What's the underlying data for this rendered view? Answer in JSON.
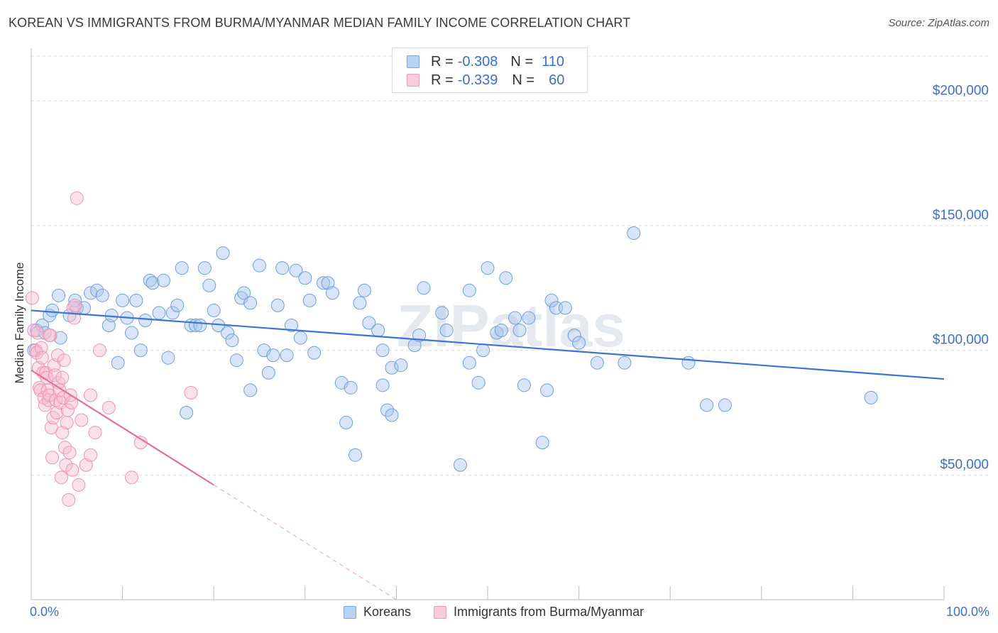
{
  "title": "KOREAN VS IMMIGRANTS FROM BURMA/MYANMAR MEDIAN FAMILY INCOME CORRELATION CHART",
  "source": "Source: ZipAtlas.com",
  "watermark": "ZIPatlas",
  "legend": {
    "rows": [
      {
        "r_label": "R =",
        "r_value": "-0.308",
        "n_label": "N =",
        "n_value": "110",
        "color": "#7aa6e6"
      },
      {
        "r_label": "R =",
        "r_value": "-0.339",
        "n_label": "N =",
        "n_value": "60",
        "color": "#f19bb6"
      }
    ]
  },
  "bottom_legend": {
    "series1": "Koreans",
    "series2": "Immigrants from Burma/Myanmar"
  },
  "colors": {
    "blue": "#3a76d0",
    "blue_fill": "#a9c5ef",
    "pink": "#e4709a",
    "pink_fill": "#f7bdd0",
    "axis_label": "#3a6fd0",
    "grid": "#dddddd"
  },
  "chart_data": {
    "type": "scatter",
    "title": "KOREAN VS IMMIGRANTS FROM BURMA/MYANMAR MEDIAN FAMILY INCOME CORRELATION CHART",
    "xlabel": "",
    "ylabel": "Median Family Income",
    "xlim": [
      0,
      100
    ],
    "ylim": [
      0,
      220000
    ],
    "x_tick_labels": [
      "0.0%",
      "100.0%"
    ],
    "y_ticks": [
      50000,
      100000,
      150000,
      200000
    ],
    "y_tick_labels": [
      "$50,000",
      "$100,000",
      "$150,000",
      "$200,000"
    ],
    "grid": true,
    "legend_position": "top-center",
    "series": [
      {
        "name": "Koreans",
        "r": -0.308,
        "n": 110,
        "trend": {
          "x": [
            0,
            100
          ],
          "y": [
            116000,
            88500
          ]
        },
        "points": [
          [
            0.3,
            100000
          ],
          [
            0.6,
            108000
          ],
          [
            1.2,
            110000
          ],
          [
            1.5,
            107000
          ],
          [
            2.0,
            114000
          ],
          [
            2.3,
            116000
          ],
          [
            3.0,
            122000
          ],
          [
            3.2,
            105000
          ],
          [
            4.2,
            114000
          ],
          [
            5.0,
            117000
          ],
          [
            4.8,
            120000
          ],
          [
            5.8,
            117000
          ],
          [
            6.5,
            123000
          ],
          [
            7.2,
            124000
          ],
          [
            7.8,
            122000
          ],
          [
            8.5,
            110000
          ],
          [
            8.8,
            114000
          ],
          [
            9.5,
            95000
          ],
          [
            10.0,
            120000
          ],
          [
            10.5,
            113000
          ],
          [
            11.0,
            107000
          ],
          [
            11.5,
            120000
          ],
          [
            12.0,
            100000
          ],
          [
            12.5,
            112000
          ],
          [
            13.0,
            128000
          ],
          [
            13.3,
            127000
          ],
          [
            14.0,
            115000
          ],
          [
            14.5,
            128000
          ],
          [
            15.0,
            97000
          ],
          [
            15.5,
            115000
          ],
          [
            16.0,
            118000
          ],
          [
            16.5,
            133000
          ],
          [
            17.0,
            75000
          ],
          [
            17.5,
            110000
          ],
          [
            18.0,
            110000
          ],
          [
            18.5,
            110000
          ],
          [
            19.0,
            133000
          ],
          [
            19.5,
            126000
          ],
          [
            20.0,
            116000
          ],
          [
            20.5,
            110000
          ],
          [
            21.0,
            139000
          ],
          [
            21.5,
            107000
          ],
          [
            22.0,
            104000
          ],
          [
            22.5,
            96000
          ],
          [
            23.0,
            121000
          ],
          [
            23.3,
            123000
          ],
          [
            24.0,
            84000
          ],
          [
            24.0,
            119000
          ],
          [
            25.0,
            134000
          ],
          [
            25.5,
            100000
          ],
          [
            26.0,
            91000
          ],
          [
            26.5,
            98000
          ],
          [
            27.0,
            118000
          ],
          [
            27.5,
            133000
          ],
          [
            28.0,
            98000
          ],
          [
            28.5,
            110000
          ],
          [
            29.0,
            132000
          ],
          [
            29.5,
            105000
          ],
          [
            30.0,
            129000
          ],
          [
            30.5,
            120000
          ],
          [
            31.0,
            99000
          ],
          [
            32.0,
            127000
          ],
          [
            32.5,
            127000
          ],
          [
            33.0,
            123000
          ],
          [
            34.0,
            87000
          ],
          [
            35.0,
            85000
          ],
          [
            34.5,
            71000
          ],
          [
            35.5,
            58000
          ],
          [
            36.0,
            119000
          ],
          [
            36.5,
            124000
          ],
          [
            37.0,
            111000
          ],
          [
            38.0,
            108000
          ],
          [
            38.5,
            86000
          ],
          [
            38.5,
            100000
          ],
          [
            39.0,
            76000
          ],
          [
            39.5,
            74000
          ],
          [
            39.5,
            93000
          ],
          [
            40.5,
            94000
          ],
          [
            42.0,
            102000
          ],
          [
            42.5,
            106000
          ],
          [
            43.0,
            125000
          ],
          [
            45.0,
            115000
          ],
          [
            45.5,
            108000
          ],
          [
            47.0,
            54000
          ],
          [
            48.0,
            124000
          ],
          [
            48.0,
            95000
          ],
          [
            49.0,
            87000
          ],
          [
            49.5,
            100000
          ],
          [
            50.0,
            133000
          ],
          [
            51.0,
            107000
          ],
          [
            51.5,
            108000
          ],
          [
            52.0,
            129000
          ],
          [
            53.0,
            113000
          ],
          [
            53.5,
            108000
          ],
          [
            54.0,
            86000
          ],
          [
            54.5,
            113000
          ],
          [
            56.0,
            63000
          ],
          [
            56.5,
            84000
          ],
          [
            57.0,
            120000
          ],
          [
            57.5,
            117000
          ],
          [
            58.5,
            117000
          ],
          [
            59.5,
            106000
          ],
          [
            60.0,
            103000
          ],
          [
            66.0,
            147000
          ],
          [
            65.0,
            95000
          ],
          [
            72.0,
            95000
          ],
          [
            74.0,
            78000
          ],
          [
            76.0,
            78000
          ],
          [
            92.0,
            81000
          ],
          [
            62.0,
            95000
          ]
        ]
      },
      {
        "name": "Immigrants from Burma/Myanmar",
        "r": -0.339,
        "n": 60,
        "trend": {
          "x": [
            0,
            20
          ],
          "y": [
            92000,
            46000
          ],
          "dashed_to": {
            "x": 40,
            "y": 0
          }
        },
        "points": [
          [
            0.1,
            121000
          ],
          [
            0.3,
            108000
          ],
          [
            0.5,
            100000
          ],
          [
            0.6,
            99000
          ],
          [
            0.7,
            107000
          ],
          [
            0.8,
            93000
          ],
          [
            0.9,
            85000
          ],
          [
            1.0,
            84000
          ],
          [
            1.1,
            101000
          ],
          [
            1.2,
            97000
          ],
          [
            1.3,
            91000
          ],
          [
            1.4,
            81000
          ],
          [
            1.5,
            78000
          ],
          [
            1.6,
            91000
          ],
          [
            1.7,
            89000
          ],
          [
            1.8,
            84000
          ],
          [
            1.9,
            80000
          ],
          [
            2.0,
            82000
          ],
          [
            2.1,
            106000
          ],
          [
            2.2,
            69000
          ],
          [
            2.3,
            57000
          ],
          [
            2.4,
            73000
          ],
          [
            2.5,
            94000
          ],
          [
            2.6,
            90000
          ],
          [
            2.7,
            80000
          ],
          [
            2.8,
            75000
          ],
          [
            2.9,
            98000
          ],
          [
            3.0,
            87000
          ],
          [
            3.1,
            84000
          ],
          [
            3.2,
            79000
          ],
          [
            3.3,
            49000
          ],
          [
            3.4,
            67000
          ],
          [
            3.5,
            81000
          ],
          [
            3.6,
            96000
          ],
          [
            3.7,
            61000
          ],
          [
            3.8,
            54000
          ],
          [
            3.9,
            71000
          ],
          [
            4.0,
            76000
          ],
          [
            4.1,
            40000
          ],
          [
            4.2,
            59000
          ],
          [
            4.3,
            82000
          ],
          [
            4.4,
            79000
          ],
          [
            4.5,
            52000
          ],
          [
            4.6,
            117000
          ],
          [
            4.7,
            113000
          ],
          [
            4.8,
            118000
          ],
          [
            5.0,
            161000
          ],
          [
            5.2,
            46000
          ],
          [
            5.5,
            72000
          ],
          [
            6.0,
            54000
          ],
          [
            6.5,
            58000
          ],
          [
            7.0,
            67000
          ],
          [
            7.5,
            100000
          ],
          [
            8.5,
            77000
          ],
          [
            11.0,
            49000
          ],
          [
            12.0,
            63000
          ],
          [
            17.5,
            83000
          ],
          [
            3.4,
            89000
          ],
          [
            2.0,
            106000
          ],
          [
            6.5,
            82000
          ]
        ]
      }
    ]
  }
}
